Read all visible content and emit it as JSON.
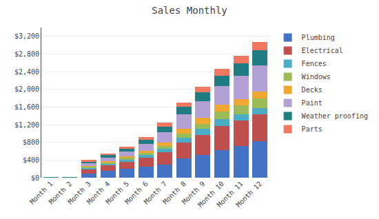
{
  "chart_data": {
    "type": "bar",
    "title": "Sales Monthly",
    "stacked": true,
    "grid": true,
    "legend": "right",
    "categories": [
      "Month 1",
      "Month 2",
      "Month 3",
      "Month 4",
      "Month 5",
      "Month 6",
      "Month 7",
      "Month 8",
      "Month 9",
      "Month 10",
      "Month 11",
      "Month 12"
    ],
    "series": [
      {
        "name": "Plumbing",
        "color": "#4472C4",
        "values": [
          0,
          0,
          100,
          150,
          200,
          250,
          300,
          430,
          520,
          620,
          720,
          830
        ]
      },
      {
        "name": "Electrical",
        "color": "#C0504D",
        "values": [
          0,
          0,
          100,
          130,
          160,
          200,
          270,
          370,
          450,
          550,
          580,
          600
        ]
      },
      {
        "name": "Fences",
        "color": "#4BACC6",
        "values": [
          0,
          0,
          30,
          40,
          50,
          60,
          80,
          100,
          130,
          160,
          130,
          150
        ]
      },
      {
        "name": "Windows",
        "color": "#9BBB59",
        "values": [
          0,
          0,
          20,
          25,
          35,
          50,
          70,
          100,
          120,
          160,
          200,
          210
        ]
      },
      {
        "name": "Decks",
        "color": "#F0A830",
        "values": [
          0,
          0,
          20,
          25,
          35,
          50,
          80,
          110,
          130,
          160,
          150,
          160
        ]
      },
      {
        "name": "Paint",
        "color": "#B3A0D4",
        "values": [
          0,
          0,
          60,
          90,
          110,
          160,
          230,
          330,
          380,
          420,
          530,
          600
        ]
      },
      {
        "name": "Weather proofing",
        "color": "#1F7C80",
        "values": [
          5,
          5,
          40,
          50,
          65,
          90,
          130,
          160,
          200,
          240,
          280,
          330
        ]
      },
      {
        "name": "Parts",
        "color": "#F07860",
        "values": [
          0,
          0,
          30,
          35,
          45,
          60,
          80,
          100,
          130,
          150,
          170,
          200
        ]
      }
    ],
    "ylim": [
      0,
      3400
    ],
    "yticks": [
      {
        "value": 0,
        "label": "$0"
      },
      {
        "value": 400,
        "label": "$400"
      },
      {
        "value": 800,
        "label": "$800"
      },
      {
        "value": 1200,
        "label": "$1,200"
      },
      {
        "value": 1600,
        "label": "$1,600"
      },
      {
        "value": 2000,
        "label": "$2,000"
      },
      {
        "value": 2400,
        "label": "$2,400"
      },
      {
        "value": 2800,
        "label": "$2,800"
      },
      {
        "value": 3200,
        "label": "$3,200"
      }
    ]
  }
}
